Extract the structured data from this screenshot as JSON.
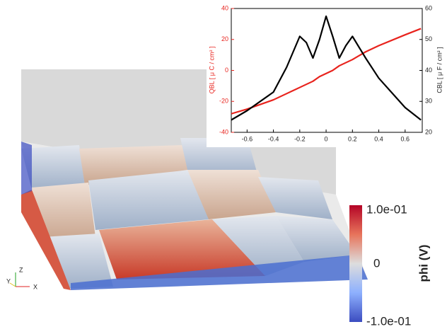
{
  "chart_data": {
    "type": "line",
    "x": [
      -0.72,
      -0.6,
      -0.4,
      -0.3,
      -0.2,
      -0.15,
      -0.1,
      -0.05,
      0,
      0.05,
      0.1,
      0.15,
      0.2,
      0.3,
      0.4,
      0.6,
      0.72
    ],
    "series": [
      {
        "color": "#e8231d",
        "axis": "y",
        "values": [
          -28,
          -25,
          -19,
          -15,
          -11,
          -9,
          -7,
          -4,
          -2,
          0,
          3,
          5,
          7,
          12,
          16,
          23,
          27
        ]
      },
      {
        "color": "#000000",
        "axis": "y2",
        "values": [
          24,
          27,
          33,
          41,
          51,
          49,
          44,
          50,
          57.5,
          51,
          44,
          48,
          51,
          44,
          37.5,
          28,
          24
        ]
      }
    ],
    "ylabel": "QBL [ μ C / cm² ]",
    "y2label": "CBL [ μ F / cm² ]",
    "xlim": [
      -0.72,
      0.73
    ],
    "xticks": [
      -0.6,
      -0.4,
      -0.2,
      0,
      0.2,
      0.4,
      0.6
    ],
    "ylim": [
      -40,
      40
    ],
    "yticks": [
      -40,
      -20,
      0,
      20,
      40
    ],
    "y2lim": [
      20,
      60
    ],
    "y2ticks": [
      20,
      30,
      40,
      50,
      60
    ],
    "colorbar": {
      "title": "phi (V)",
      "labels": [
        "1.0e-01",
        "0",
        "-1.0e-01"
      ],
      "colors": [
        "#b40426",
        "#dddddd",
        "#3b4cc0"
      ]
    },
    "axes_triad": [
      "Z",
      "Y",
      "X"
    ]
  }
}
